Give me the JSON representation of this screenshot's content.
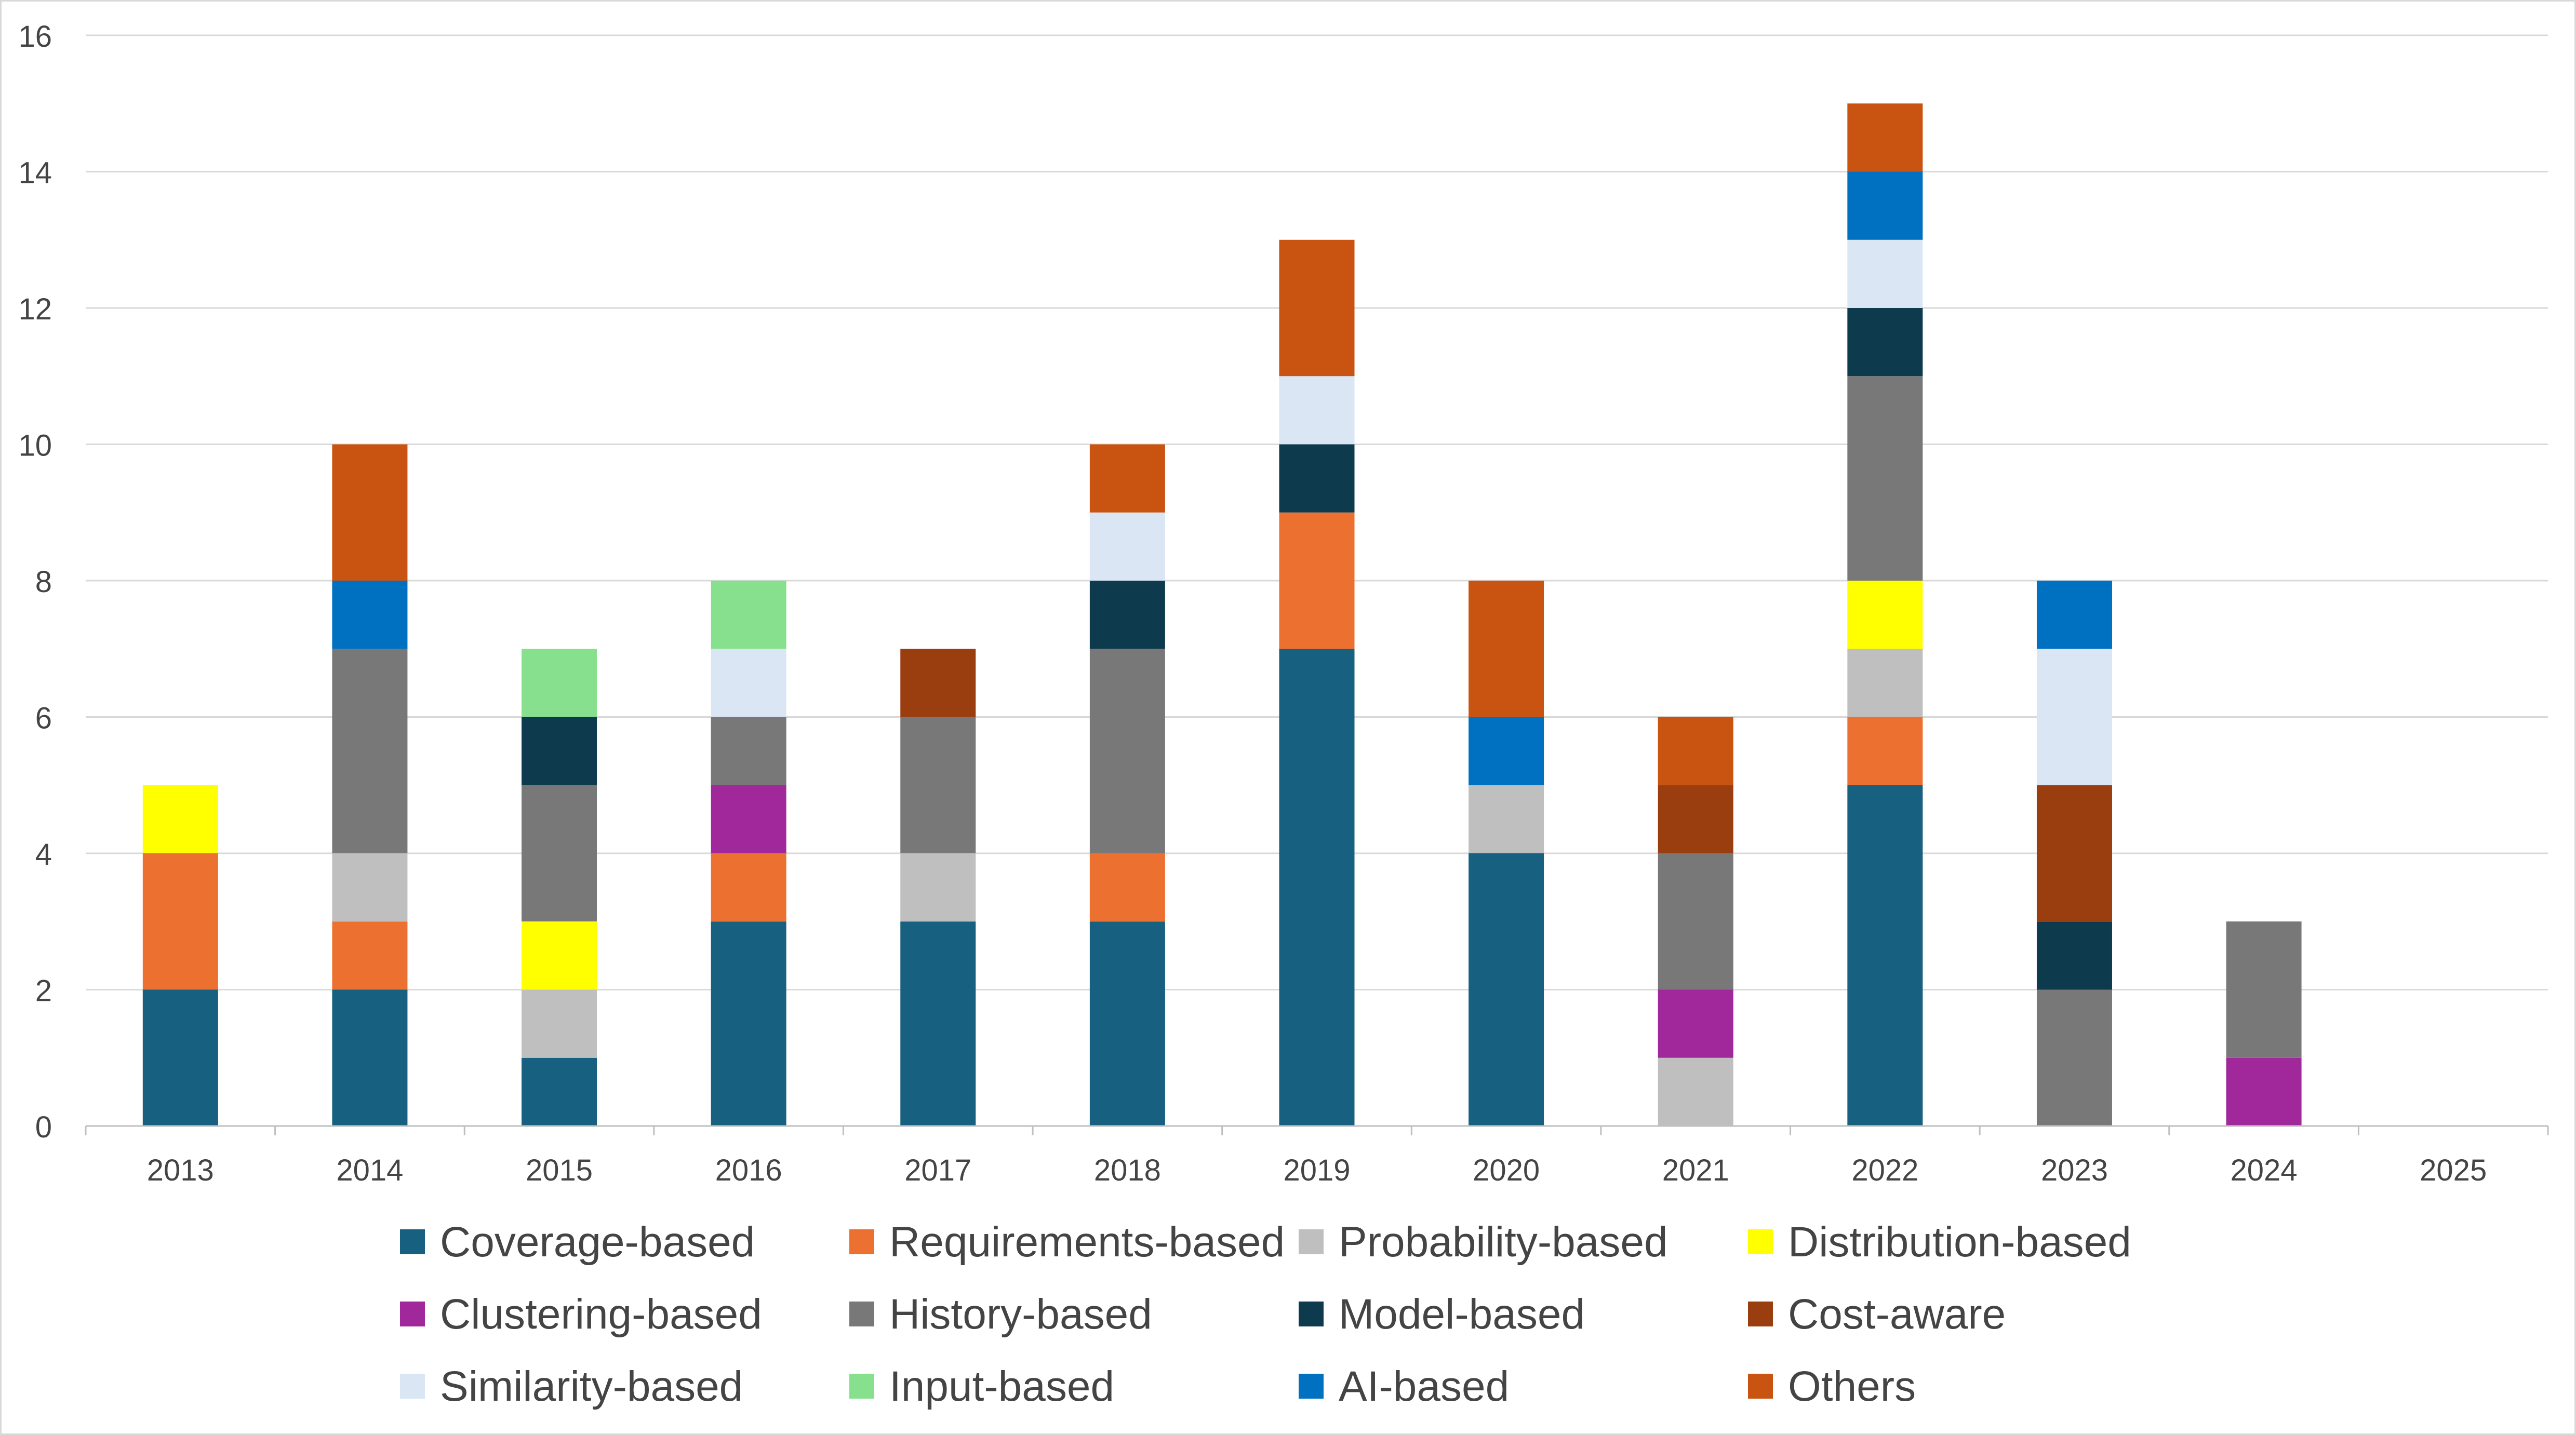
{
  "chart_data": {
    "type": "bar",
    "stacked": true,
    "categories": [
      "2013",
      "2014",
      "2015",
      "2016",
      "2017",
      "2018",
      "2019",
      "2020",
      "2021",
      "2022",
      "2023",
      "2024",
      "2025"
    ],
    "ylim": [
      0,
      16
    ],
    "yticks": [
      0,
      2,
      4,
      6,
      8,
      10,
      12,
      14,
      16
    ],
    "grid": true,
    "legend_position": "bottom",
    "title": "",
    "xlabel": "",
    "ylabel": "",
    "series": [
      {
        "name": "Coverage-based",
        "color": "#17607F",
        "values": [
          2,
          2,
          1,
          3,
          3,
          3,
          7,
          4,
          0,
          5,
          0,
          0,
          0
        ]
      },
      {
        "name": "Requirements-based",
        "color": "#EC7131",
        "values": [
          2,
          1,
          0,
          1,
          0,
          1,
          2,
          0,
          0,
          1,
          0,
          0,
          0
        ]
      },
      {
        "name": "Probability-based",
        "color": "#BFBFBF",
        "values": [
          0,
          1,
          1,
          0,
          1,
          0,
          0,
          1,
          1,
          1,
          0,
          0,
          0
        ]
      },
      {
        "name": "Distribution-based",
        "color": "#FFFF00",
        "values": [
          1,
          0,
          1,
          0,
          0,
          0,
          0,
          0,
          0,
          1,
          0,
          0,
          0
        ]
      },
      {
        "name": "Clustering-based",
        "color": "#A0289A",
        "values": [
          0,
          0,
          0,
          1,
          0,
          0,
          0,
          0,
          1,
          0,
          0,
          1,
          0
        ]
      },
      {
        "name": "History-based",
        "color": "#787878",
        "values": [
          0,
          3,
          2,
          1,
          2,
          3,
          0,
          0,
          2,
          3,
          2,
          2,
          0
        ]
      },
      {
        "name": "Model-based",
        "color": "#0E3A4E",
        "values": [
          0,
          0,
          1,
          0,
          0,
          1,
          1,
          0,
          0,
          1,
          1,
          0,
          0
        ]
      },
      {
        "name": "Cost-aware",
        "color": "#9A3E10",
        "values": [
          0,
          0,
          0,
          0,
          1,
          0,
          0,
          0,
          1,
          0,
          2,
          0,
          0
        ]
      },
      {
        "name": "Similarity-based",
        "color": "#DAE6F4",
        "values": [
          0,
          0,
          0,
          1,
          0,
          1,
          1,
          0,
          0,
          1,
          2,
          0,
          0
        ]
      },
      {
        "name": "Input-based",
        "color": "#87E08E",
        "values": [
          0,
          0,
          1,
          1,
          0,
          0,
          0,
          0,
          0,
          0,
          0,
          0,
          0
        ]
      },
      {
        "name": "AI-based",
        "color": "#0070C0",
        "values": [
          0,
          1,
          0,
          0,
          0,
          0,
          0,
          1,
          0,
          1,
          1,
          0,
          0
        ]
      },
      {
        "name": "Others",
        "color": "#C95311",
        "values": [
          0,
          2,
          0,
          0,
          0,
          1,
          2,
          2,
          1,
          1,
          0,
          0,
          0
        ]
      }
    ]
  }
}
